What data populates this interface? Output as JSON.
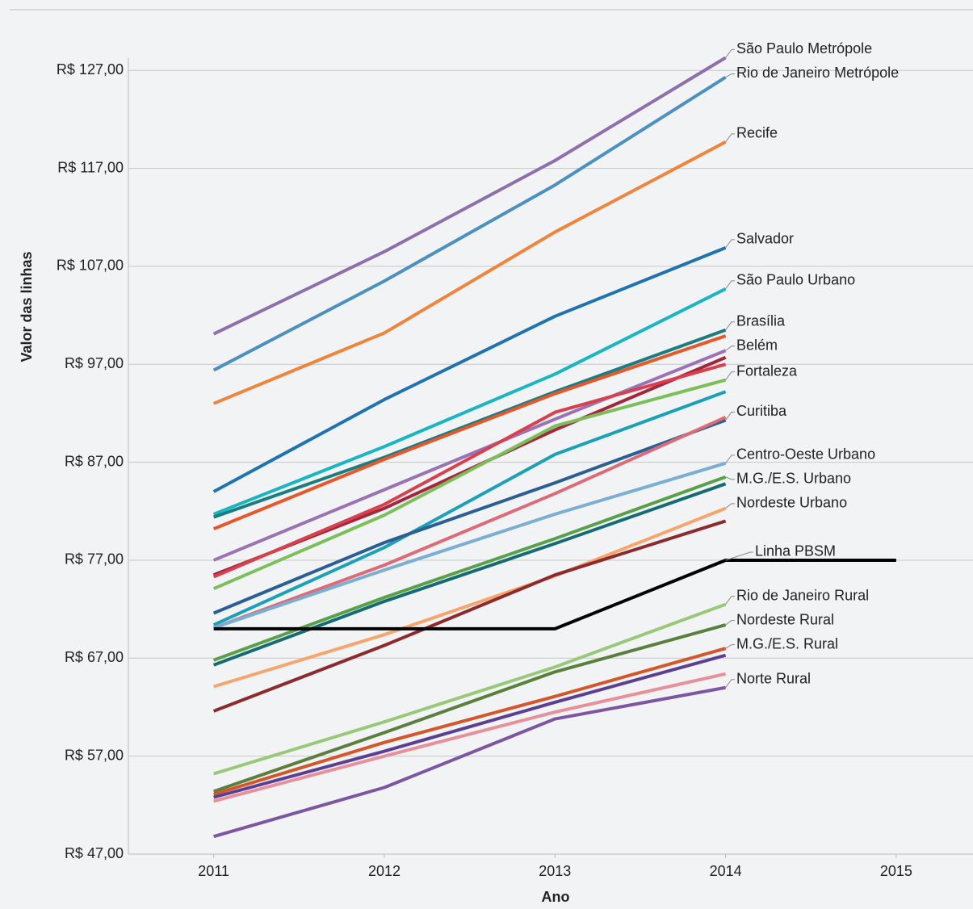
{
  "chart_data": {
    "type": "line",
    "xlabel": "Ano",
    "ylabel": "Valor das linhas",
    "xlim": [
      2010.5,
      2015.45
    ],
    "ylim": [
      47,
      133.2
    ],
    "xticks": [
      2011,
      2012,
      2013,
      2014,
      2015
    ],
    "yticks": [
      {
        "value": 47,
        "label": "R$ 47,00"
      },
      {
        "value": 57,
        "label": "R$ 57,00"
      },
      {
        "value": 67,
        "label": "R$ 67,00"
      },
      {
        "value": 77,
        "label": "R$ 77,00"
      },
      {
        "value": 87,
        "label": "R$ 87,00"
      },
      {
        "value": 97,
        "label": "R$ 97,00"
      },
      {
        "value": 107,
        "label": "R$ 107,00"
      },
      {
        "value": 117,
        "label": "R$ 117,00"
      },
      {
        "value": 127,
        "label": "R$ 127,00"
      }
    ],
    "grid": true,
    "x": [
      2011,
      2012,
      2013,
      2014,
      2015
    ],
    "series": [
      {
        "name": "São Paulo Metrópole",
        "color": "#8e6fae",
        "values": [
          100.1,
          108.5,
          117.8,
          128.3,
          null
        ]
      },
      {
        "name": "Rio de Janeiro Metrópole",
        "color": "#4a90c0",
        "values": [
          96.4,
          105.5,
          115.3,
          126.3,
          null
        ]
      },
      {
        "name": "Recife",
        "color": "#f0843c",
        "values": [
          93.0,
          100.2,
          110.5,
          119.7,
          null
        ]
      },
      {
        "name": "Salvador",
        "color": "#1f73b0",
        "values": [
          84.0,
          93.4,
          101.9,
          108.9,
          null
        ]
      },
      {
        "name": "São Paulo Urbano",
        "color": "#19b5c3",
        "values": [
          81.7,
          88.6,
          96.0,
          104.7,
          null
        ]
      },
      {
        "name": "Brasília",
        "color": "#1b7d80",
        "values": [
          81.4,
          87.5,
          94.2,
          100.5,
          null
        ]
      },
      {
        "color": "#e8572a",
        "values": [
          80.2,
          87.3,
          94.0,
          99.9,
          null
        ]
      },
      {
        "name": "Belém",
        "color": "#9a72b5",
        "values": [
          77.0,
          84.2,
          91.4,
          98.4,
          null
        ]
      },
      {
        "color": "#a3263e",
        "values": [
          75.5,
          82.3,
          90.3,
          97.7,
          null
        ]
      },
      {
        "color": "#d7404d",
        "values": [
          75.3,
          82.7,
          92.1,
          97.0,
          null
        ]
      },
      {
        "name": "Fortaleza",
        "color": "#7bbf5a",
        "values": [
          74.1,
          81.6,
          90.7,
          95.4,
          null
        ]
      },
      {
        "color": "#1aa1b8",
        "values": [
          70.4,
          78.3,
          87.8,
          94.2,
          null
        ]
      },
      {
        "name": "Curitiba",
        "color": "#2a5f95",
        "values": [
          71.6,
          78.8,
          84.9,
          91.3,
          null
        ]
      },
      {
        "color": "#dd6b77",
        "values": [
          70.1,
          76.5,
          83.8,
          91.6,
          null
        ]
      },
      {
        "name": "Centro-Oeste Urbano",
        "color": "#7aaed3",
        "values": [
          70.1,
          76.0,
          81.7,
          86.9,
          null
        ]
      },
      {
        "name": "M.G./E.S. Urbano",
        "color": "#58a04a",
        "values": [
          66.8,
          73.2,
          79.2,
          85.5,
          null
        ]
      },
      {
        "color": "#176b74",
        "values": [
          66.3,
          72.8,
          78.7,
          84.8,
          null
        ]
      },
      {
        "name": "Nordeste Urbano",
        "color": "#f7a56d",
        "values": [
          64.1,
          69.4,
          75.4,
          82.3,
          null
        ]
      },
      {
        "color": "#8d2a2e",
        "values": [
          61.6,
          68.3,
          75.5,
          81.0,
          null
        ]
      },
      {
        "name": "Linha PBSM",
        "color": "#000000",
        "values": [
          70.0,
          70.0,
          70.0,
          77.0,
          77.0
        ]
      },
      {
        "name": "Rio de Janeiro Rural",
        "color": "#98c979",
        "values": [
          55.2,
          60.5,
          66.1,
          72.5,
          null
        ]
      },
      {
        "name": "Nordeste Rural",
        "color": "#5b7f3d",
        "values": [
          53.4,
          59.4,
          65.6,
          70.4,
          null
        ]
      },
      {
        "name": "M.G./E.S. Rural",
        "color": "#d4562a",
        "values": [
          53.1,
          58.4,
          63.1,
          68.0,
          null
        ]
      },
      {
        "color": "#5a3f95",
        "values": [
          52.8,
          57.5,
          62.5,
          67.3,
          null
        ]
      },
      {
        "color": "#e8909a",
        "values": [
          52.4,
          57.0,
          61.5,
          65.4,
          null
        ]
      },
      {
        "name": "Norte Rural",
        "color": "#7d56a3",
        "values": [
          48.8,
          53.8,
          60.8,
          64.0,
          null
        ]
      }
    ]
  }
}
